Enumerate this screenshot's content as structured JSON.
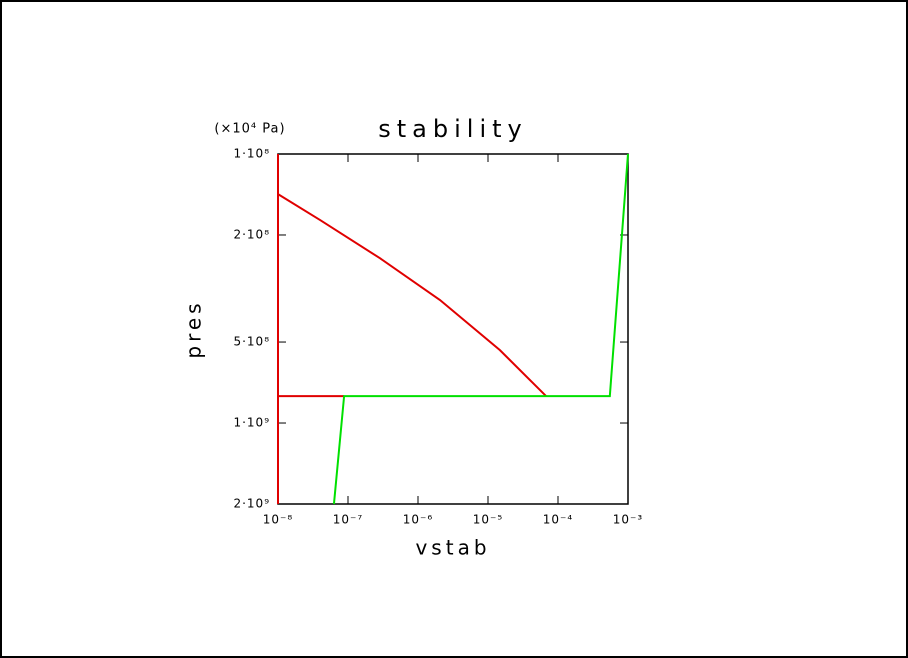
{
  "chart_data": {
    "type": "line",
    "title": "stability",
    "y_unit": "(×10⁴ Pa)",
    "x_label": "vstab",
    "y_label": "pres",
    "xscale": "log",
    "yscale": "log",
    "xlim": [
      1e-08,
      0.001
    ],
    "xticks": [
      {
        "value": 1e-08,
        "label": "10⁻⁸"
      },
      {
        "value": 1e-07,
        "label": "10⁻⁷"
      },
      {
        "value": 1e-06,
        "label": "10⁻⁶"
      },
      {
        "value": 1e-05,
        "label": "10⁻⁵"
      },
      {
        "value": 0.0001,
        "label": "10⁻⁴"
      },
      {
        "value": 0.001,
        "label": "10⁻³"
      }
    ],
    "ylim": [
      2000000000,
      100000000
    ],
    "yticks": [
      {
        "value": 100000000,
        "label": "1·10⁸"
      },
      {
        "value": 200000000,
        "label": "2·10⁸"
      },
      {
        "value": 500000000,
        "label": "5·10⁸"
      },
      {
        "value": 1000000000,
        "label": "1·10⁹"
      },
      {
        "value": 2000000000,
        "label": "2·10⁹"
      }
    ],
    "series": [
      {
        "color": "#e00000",
        "x": [
          1e-08,
          1e-08,
          null,
          1e-08,
          4e-08,
          2.86e-07,
          2.06e-06,
          1.48e-05,
          6.75e-05,
          null,
          1e-08,
          8.8e-08
        ],
        "values": [
          100000000,
          2000000000,
          null,
          141000000,
          176000000,
          244000000,
          349000000,
          536000000,
          794000000,
          null,
          794000000,
          794000000
        ]
      },
      {
        "color": "#00e000",
        "x": [
          6.3e-08,
          8.8e-08,
          0.00055,
          0.001
        ],
        "values": [
          2000000000,
          794000000,
          794000000,
          100000000
        ]
      }
    ]
  }
}
